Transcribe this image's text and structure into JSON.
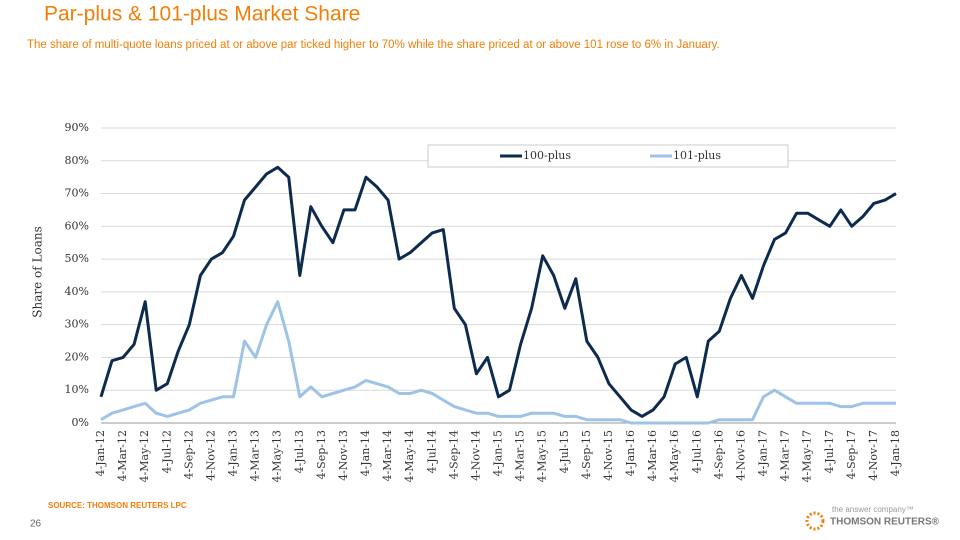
{
  "chart_data": {
    "type": "line",
    "title": "Par-plus & 101-plus Market Share",
    "subtitle": "The share of multi-quote loans priced at or above par ticked higher to 70% while the share priced at or above 101 rose to 6% in January.",
    "y_label": "Share of Loans",
    "source": "SOURCE: THOMSON REUTERS LPC",
    "page_number": "26",
    "brand_tagline": "the answer company™",
    "brand_name": "THOMSON REUTERS®",
    "categories": [
      "4-Jan-12",
      null,
      "4-Mar-12",
      null,
      "4-May-12",
      null,
      "4-Jul-12",
      null,
      "4-Sep-12",
      null,
      "4-Nov-12",
      null,
      "4-Jan-13",
      null,
      "4-Mar-13",
      null,
      "4-May-13",
      null,
      "4-Jul-13",
      null,
      "4-Sep-13",
      null,
      "4-Nov-13",
      null,
      "4-Jan-14",
      null,
      "4-Mar-14",
      null,
      "4-May-14",
      null,
      "4-Jul-14",
      null,
      "4-Sep-14",
      null,
      "4-Nov-14",
      null,
      "4-Jan-15",
      null,
      "4-Mar-15",
      null,
      "4-May-15",
      null,
      "4-Jul-15",
      null,
      "4-Sep-15",
      null,
      "4-Nov-15",
      null,
      "4-Jan-16",
      null,
      "4-Mar-16",
      null,
      "4-May-16",
      null,
      "4-Jul-16",
      null,
      "4-Sep-16",
      null,
      "4-Nov-16",
      null,
      "4-Jan-17",
      null,
      "4-Mar-17",
      null,
      "4-May-17",
      null,
      "4-Jul-17",
      null,
      "4-Sep-17",
      null,
      "4-Nov-17",
      null,
      "4-Jan-18"
    ],
    "series": [
      {
        "name": "100-plus",
        "color": "#0d2b4e",
        "values": [
          8,
          19,
          20,
          24,
          37,
          10,
          12,
          22,
          30,
          45,
          50,
          52,
          57,
          68,
          72,
          76,
          78,
          75,
          45,
          66,
          60,
          55,
          65,
          65,
          75,
          72,
          68,
          50,
          52,
          55,
          58,
          59,
          35,
          30,
          15,
          20,
          8,
          10,
          24,
          35,
          51,
          45,
          35,
          44,
          25,
          20,
          12,
          8,
          4,
          2,
          4,
          8,
          18,
          20,
          8,
          25,
          28,
          38,
          45,
          38,
          48,
          56,
          58,
          64,
          64,
          62,
          60,
          65,
          60,
          63,
          67,
          68,
          70
        ]
      },
      {
        "name": "101-plus",
        "color": "#9dc3e6",
        "values": [
          1,
          3,
          4,
          5,
          6,
          3,
          2,
          3,
          4,
          6,
          7,
          8,
          8,
          25,
          20,
          30,
          37,
          25,
          8,
          11,
          8,
          9,
          10,
          11,
          13,
          12,
          11,
          9,
          9,
          10,
          9,
          7,
          5,
          4,
          3,
          3,
          2,
          2,
          2,
          3,
          3,
          3,
          2,
          2,
          1,
          1,
          1,
          1,
          0,
          0,
          0,
          0,
          0,
          0,
          0,
          0,
          1,
          1,
          1,
          1,
          8,
          10,
          8,
          6,
          6,
          6,
          6,
          5,
          5,
          6,
          6,
          6,
          6
        ]
      }
    ],
    "ylim": [
      0,
      90
    ],
    "yticks": [
      {
        "value": 0,
        "label": "0%"
      },
      {
        "value": 10,
        "label": "10%"
      },
      {
        "value": 20,
        "label": "20%"
      },
      {
        "value": 30,
        "label": "30%"
      },
      {
        "value": 40,
        "label": "40%"
      },
      {
        "value": 50,
        "label": "50%"
      },
      {
        "value": 60,
        "label": "60%"
      },
      {
        "value": 70,
        "label": "70%"
      },
      {
        "value": 80,
        "label": "80%"
      },
      {
        "value": 90,
        "label": "90%"
      }
    ],
    "grid": true,
    "legend": "top-right"
  }
}
